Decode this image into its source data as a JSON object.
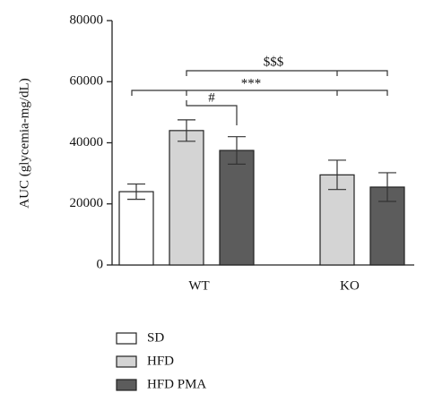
{
  "chart_data": {
    "type": "bar",
    "y_label": "AUC (glycemia-mg/dL)",
    "categories": [
      "WT",
      "KO"
    ],
    "series": [
      {
        "name": "SD",
        "color": "#ffffff",
        "values": [
          24000,
          null
        ],
        "errors": [
          2500,
          null
        ]
      },
      {
        "name": "HFD",
        "color": "#d4d4d4",
        "values": [
          44000,
          29500
        ],
        "errors": [
          3500,
          4800
        ]
      },
      {
        "name": "HFD PMA",
        "color": "#5c5c5c",
        "values": [
          37500,
          25500
        ],
        "errors": [
          4500,
          4700
        ]
      }
    ],
    "ylim": [
      0,
      80000
    ],
    "yticks": [
      0,
      20000,
      40000,
      60000,
      80000
    ],
    "annotations": [
      "$$$",
      "***",
      "#"
    ]
  }
}
